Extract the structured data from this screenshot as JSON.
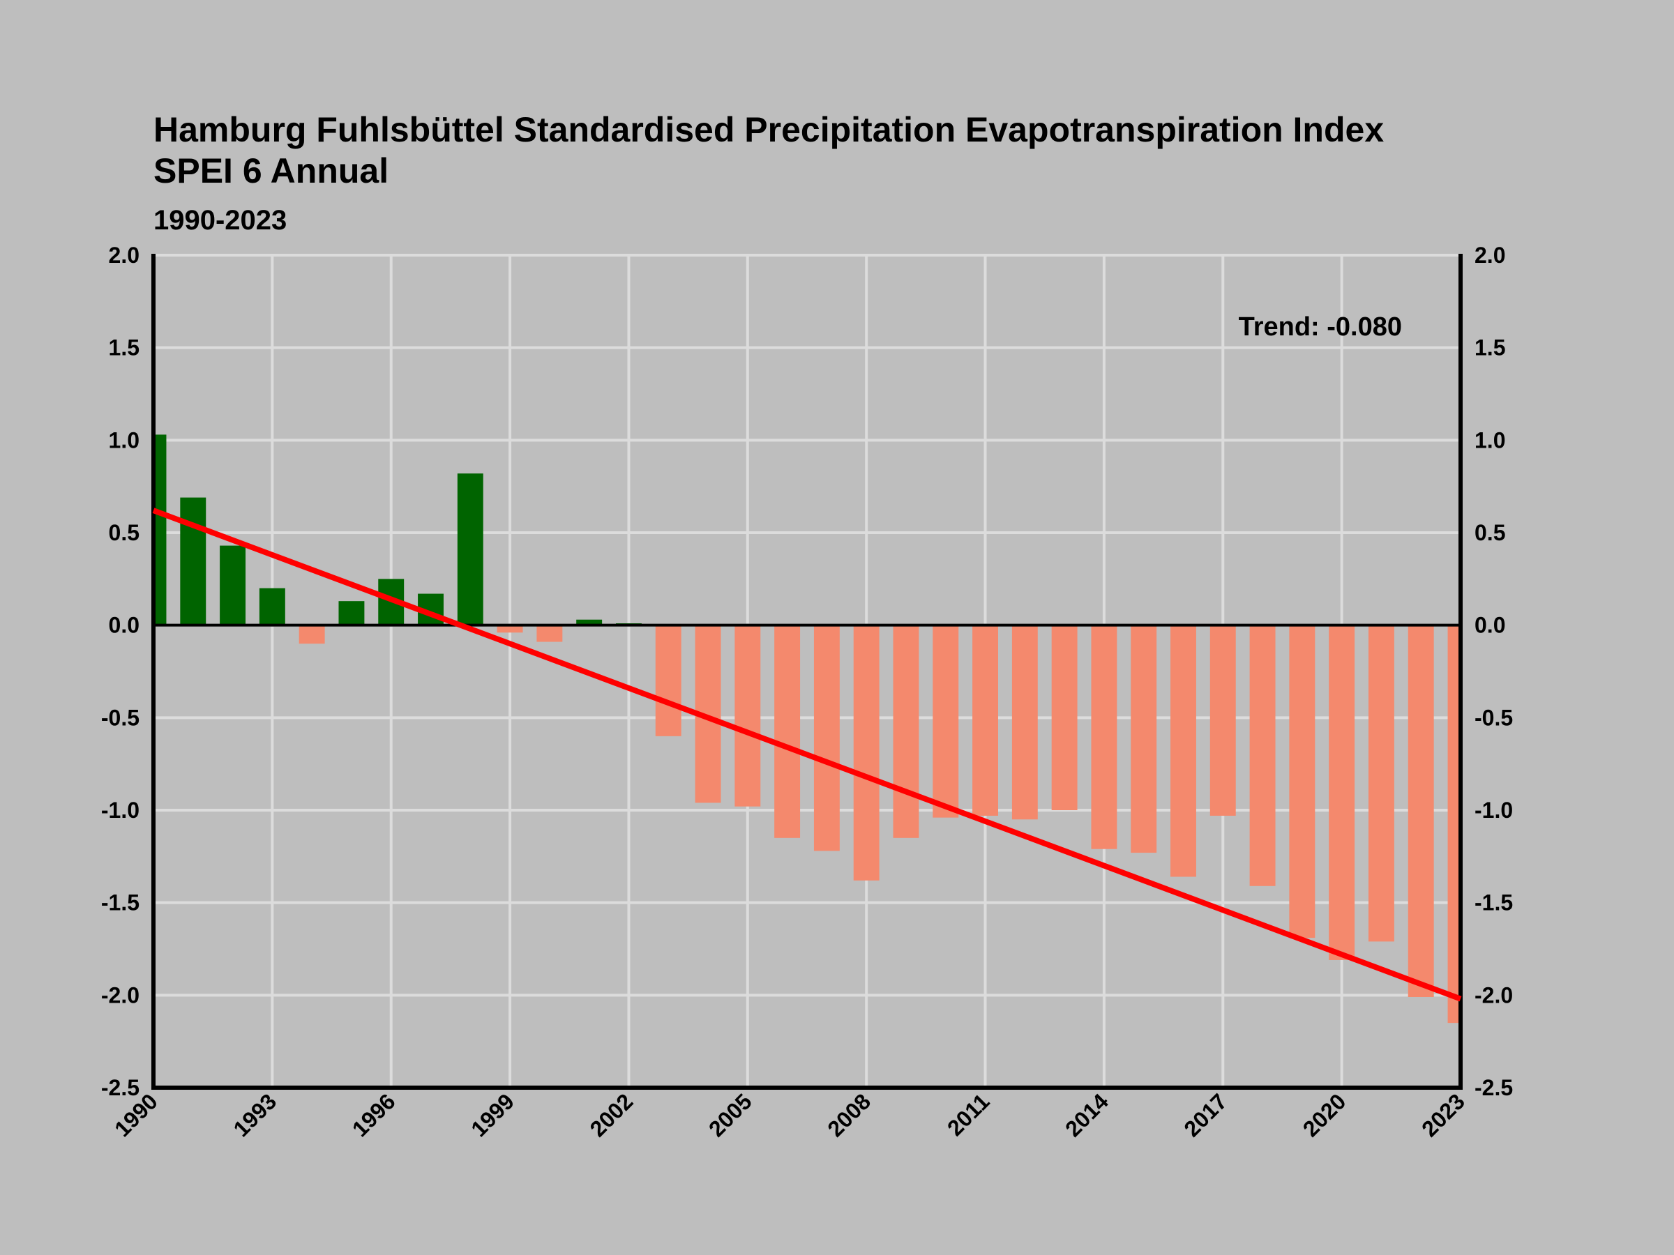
{
  "chart_data": {
    "type": "bar",
    "title_line1": "Hamburg Fuhlsbüttel Standardised Precipitation Evapotranspiration Index",
    "title_line2": "SPEI 6 Annual",
    "subtitle": "1990-2023",
    "annotation": "Trend: -0.080",
    "xlabel": "",
    "ylabel": "",
    "ylim": [
      -2.5,
      2.0
    ],
    "yticks": [
      "2.0",
      "1.5",
      "1.0",
      "0.5",
      "0.0",
      "-0.5",
      "-1.0",
      "-1.5",
      "-2.0",
      "-2.5"
    ],
    "xticks": [
      "1990",
      "1993",
      "1996",
      "1999",
      "2002",
      "2005",
      "2008",
      "2011",
      "2014",
      "2017",
      "2020",
      "2023"
    ],
    "grid": true,
    "x": [
      1990,
      1991,
      1992,
      1993,
      1994,
      1995,
      1996,
      1997,
      1998,
      1999,
      2000,
      2001,
      2002,
      2003,
      2004,
      2005,
      2006,
      2007,
      2008,
      2009,
      2010,
      2011,
      2012,
      2013,
      2014,
      2015,
      2016,
      2017,
      2018,
      2019,
      2020,
      2021,
      2022,
      2023
    ],
    "values": [
      1.03,
      0.69,
      0.43,
      0.2,
      -0.1,
      0.13,
      0.25,
      0.17,
      0.82,
      -0.04,
      -0.09,
      0.03,
      0.01,
      -0.6,
      -0.96,
      -0.98,
      -1.15,
      -1.22,
      -1.38,
      -1.15,
      -1.04,
      -1.03,
      -1.05,
      -1.0,
      -1.21,
      -1.23,
      -1.36,
      -1.03,
      -1.41,
      -1.69,
      -1.81,
      -1.71,
      -2.01,
      -2.15
    ],
    "trend": {
      "start": [
        1990,
        0.62
      ],
      "end": [
        2023,
        -2.02
      ]
    },
    "colors": {
      "positive": "#006400",
      "negative": "#f4896d",
      "trend": "#ff0000",
      "grid": "#dcdcdc",
      "axis": "#000000",
      "background": "#bebebe"
    }
  }
}
